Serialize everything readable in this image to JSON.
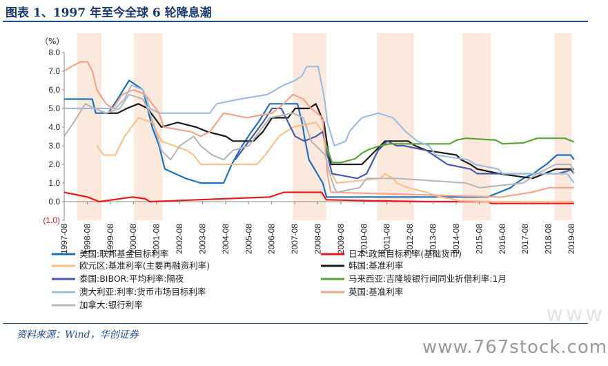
{
  "header": {
    "title": "图表 1、1997 年至今全球 6 轮降息潮"
  },
  "footer": {
    "source": "资料来源：Wind，华创证券",
    "watermark": "www.767stock.com",
    "watermark_ghost": "www"
  },
  "chart_data": {
    "type": "line",
    "title": "",
    "unit_label": "（%）",
    "xlabel": "",
    "ylabel": "",
    "ylim": [
      -1.0,
      8.0
    ],
    "xlim": [
      "1997-08",
      "2019-08"
    ],
    "y_ticks": [
      "8.0",
      "7.0",
      "6.0",
      "5.0",
      "4.0",
      "3.0",
      "2.0",
      "1.0",
      "0.0",
      "(1.0)"
    ],
    "y_tick_values": [
      8,
      7,
      6,
      5,
      4,
      3,
      2,
      1,
      0,
      -1
    ],
    "y_tick_colors": {
      "(1.0)": "#d92020"
    },
    "x_ticks": [
      "1997-08",
      "1998-08",
      "1999-08",
      "2000-08",
      "2001-08",
      "2002-08",
      "2003-08",
      "2004-08",
      "2005-08",
      "2006-08",
      "2007-08",
      "2008-08",
      "2009-08",
      "2010-08",
      "2011-08",
      "2012-08",
      "2013-08",
      "2014-08",
      "2015-08",
      "2016-08",
      "2017-08",
      "2018-08",
      "2019-08"
    ],
    "x_tick_values": [
      1997.583,
      1998.583,
      1999.583,
      2000.583,
      2001.583,
      2002.583,
      2003.583,
      2004.583,
      2005.583,
      2006.583,
      2007.583,
      2008.583,
      2009.583,
      2010.583,
      2011.583,
      2012.583,
      2013.583,
      2014.583,
      2015.583,
      2016.583,
      2017.583,
      2018.583,
      2019.583
    ],
    "shaded_periods": [
      [
        1998.15,
        1999.2
      ],
      [
        2000.6,
        2001.85
      ],
      [
        2007.5,
        2008.95
      ],
      [
        2011.15,
        2012.75
      ],
      [
        2014.85,
        2016.1
      ],
      [
        2018.85,
        2019.6
      ]
    ],
    "grid": false,
    "legend_placement": "bottom",
    "series": [
      {
        "name": "美国:联邦基金目标利率",
        "color": "#1f6fbf",
        "x": [
          1997.58,
          1998.8,
          1998.95,
          1999.5,
          1999.9,
          2000.4,
          2001.0,
          2001.4,
          2001.7,
          2001.95,
          2002.85,
          2003.5,
          2004.5,
          2004.85,
          2005.3,
          2005.7,
          2006.0,
          2006.5,
          2007.7,
          2007.9,
          2008.0,
          2008.2,
          2008.8,
          2008.96,
          2015.95,
          2016.95,
          2017.2,
          2017.5,
          2017.95,
          2018.2,
          2018.5,
          2018.95,
          2019.55,
          2019.7
        ],
        "y": [
          5.5,
          5.5,
          4.75,
          4.75,
          5.5,
          6.5,
          6.0,
          4.0,
          3.0,
          1.75,
          1.25,
          1.0,
          1.0,
          2.0,
          3.0,
          3.75,
          4.25,
          5.25,
          5.25,
          4.25,
          3.5,
          2.25,
          1.0,
          0.25,
          0.25,
          0.75,
          1.0,
          1.25,
          1.5,
          1.75,
          2.0,
          2.5,
          2.5,
          2.25
        ]
      },
      {
        "name": "日本:政策目标利率(基础货币)",
        "color": "#e41a1c",
        "x": [
          1997.58,
          1998.6,
          1999.1,
          2000.55,
          2001.1,
          2001.3,
          2006.5,
          2007.1,
          2008.75,
          2008.95,
          2010.8,
          2013.3,
          2016.0,
          2016.1,
          2019.7
        ],
        "y": [
          0.5,
          0.25,
          0.0,
          0.25,
          0.15,
          0.0,
          0.25,
          0.5,
          0.5,
          0.1,
          0.05,
          0.0,
          0.0,
          -0.1,
          -0.1
        ]
      },
      {
        "name": "欧元区:基准利率(主要再融资利率)",
        "color": "#f8c28e",
        "x": [
          1999.0,
          1999.3,
          1999.8,
          2000.2,
          2000.8,
          2001.4,
          2001.8,
          2002.9,
          2003.2,
          2003.5,
          2005.95,
          2006.3,
          2006.9,
          2007.5,
          2008.5,
          2008.8,
          2009.0,
          2009.2,
          2009.4,
          2011.3,
          2011.5,
          2011.85,
          2012.0,
          2012.5,
          2013.3,
          2013.85,
          2014.4,
          2014.7,
          2016.2,
          2019.7
        ],
        "y": [
          3.0,
          2.5,
          2.5,
          3.5,
          4.5,
          4.25,
          3.25,
          2.75,
          2.5,
          2.0,
          2.0,
          2.5,
          3.5,
          4.0,
          4.25,
          3.75,
          2.5,
          1.5,
          1.0,
          1.25,
          1.5,
          1.25,
          1.0,
          0.75,
          0.5,
          0.25,
          0.15,
          0.05,
          0.0,
          0.0
        ]
      },
      {
        "name": "韩国:基准利率",
        "color": "#1a1a1a",
        "x": [
          1999.4,
          1999.9,
          2000.3,
          2000.8,
          2001.2,
          2001.5,
          2001.8,
          2002.5,
          2003.3,
          2003.8,
          2004.6,
          2004.9,
          2005.8,
          2006.2,
          2006.6,
          2007.3,
          2007.6,
          2008.2,
          2008.5,
          2008.85,
          2009.0,
          2009.15,
          2010.5,
          2010.9,
          2011.3,
          2011.5,
          2012.5,
          2012.8,
          2013.3,
          2014.6,
          2014.8,
          2015.2,
          2015.5,
          2016.45,
          2017.9,
          2018.9,
          2019.55,
          2019.7
        ],
        "y": [
          4.75,
          4.75,
          5.0,
          5.25,
          5.0,
          4.5,
          4.0,
          4.25,
          4.0,
          3.75,
          3.5,
          3.25,
          3.25,
          3.75,
          4.5,
          4.5,
          5.0,
          5.0,
          5.25,
          4.25,
          3.0,
          2.0,
          2.0,
          2.5,
          3.0,
          3.25,
          3.25,
          3.0,
          2.75,
          2.5,
          2.25,
          2.0,
          1.75,
          1.5,
          1.25,
          1.75,
          1.75,
          1.5
        ]
      },
      {
        "name": "泰国:BIBOR:平均利率:隔夜",
        "color": "#4a5aa8",
        "x": [
          2005.0,
          2005.3,
          2005.6,
          2005.9,
          2006.2,
          2006.6,
          2007.0,
          2007.3,
          2007.6,
          2008.0,
          2008.5,
          2008.8,
          2009.0,
          2009.2,
          2010.3,
          2010.7,
          2010.9,
          2011.2,
          2011.6,
          2012.0,
          2012.3,
          2013.3,
          2013.6,
          2014.2,
          2015.2,
          2015.5,
          2019.0,
          2019.7
        ],
        "y": [
          2.25,
          2.75,
          3.25,
          3.75,
          4.25,
          5.0,
          5.0,
          4.25,
          3.5,
          3.25,
          3.5,
          3.75,
          2.5,
          1.5,
          1.25,
          1.5,
          2.0,
          2.75,
          3.25,
          3.0,
          3.0,
          2.75,
          2.5,
          2.0,
          1.75,
          1.5,
          1.5,
          1.75
        ]
      },
      {
        "name": "马来西亚:吉隆坡银行间同业折借利率:1月",
        "color": "#5aa33a",
        "x": [
          2008.85,
          2009.2,
          2009.6,
          2010.2,
          2010.5,
          2010.8,
          2011.3,
          2011.7,
          2014.3,
          2014.6,
          2015.0,
          2016.3,
          2016.6,
          2017.5,
          2018.1,
          2019.3,
          2019.7
        ],
        "y": [
          3.4,
          2.1,
          2.1,
          2.3,
          2.6,
          2.8,
          3.0,
          3.1,
          3.1,
          3.3,
          3.4,
          3.3,
          3.1,
          3.15,
          3.4,
          3.4,
          3.2
        ]
      },
      {
        "name": "澳大利亚:利率:货币市场目标利率",
        "color": "#9fbde0",
        "x": [
          1997.58,
          1997.9,
          1998.8,
          1999.8,
          2000.2,
          2000.5,
          2001.0,
          2001.3,
          2001.7,
          2002.4,
          2002.9,
          2003.9,
          2004.2,
          2005.2,
          2006.4,
          2007.1,
          2007.6,
          2007.9,
          2008.1,
          2008.6,
          2008.8,
          2008.9,
          2009.0,
          2009.3,
          2009.8,
          2009.95,
          2010.3,
          2010.5,
          2011.2,
          2011.85,
          2012.4,
          2012.9,
          2013.4,
          2013.7,
          2015.1,
          2015.4,
          2016.4,
          2016.6,
          2019.4,
          2019.7
        ],
        "y": [
          5.0,
          5.0,
          5.0,
          5.0,
          5.5,
          6.25,
          6.0,
          5.0,
          4.75,
          4.75,
          4.75,
          4.75,
          5.25,
          5.5,
          5.75,
          6.25,
          6.5,
          6.75,
          7.25,
          7.25,
          6.0,
          5.25,
          4.25,
          3.0,
          3.25,
          3.75,
          4.25,
          4.5,
          4.75,
          4.5,
          3.75,
          3.25,
          3.0,
          2.5,
          2.25,
          2.0,
          1.75,
          1.5,
          1.5,
          1.0
        ]
      },
      {
        "name": "英国:基准利率",
        "color": "#f2a48a",
        "x": [
          1997.58,
          1997.9,
          1998.3,
          1998.6,
          1998.8,
          1999.0,
          1999.4,
          1999.7,
          2000.1,
          2000.6,
          2001.1,
          2001.4,
          2001.7,
          2001.9,
          2003.1,
          2003.5,
          2003.9,
          2004.5,
          2005.5,
          2006.6,
          2007.1,
          2007.5,
          2007.95,
          2008.3,
          2008.8,
          2008.9,
          2009.0,
          2009.15,
          2016.55,
          2017.85,
          2018.6,
          2019.7
        ],
        "y": [
          7.0,
          7.25,
          7.5,
          7.5,
          7.0,
          6.0,
          5.25,
          5.0,
          5.75,
          6.0,
          5.75,
          5.25,
          4.75,
          4.0,
          3.75,
          3.5,
          3.75,
          4.75,
          4.5,
          4.75,
          5.25,
          5.75,
          5.5,
          5.0,
          4.5,
          3.0,
          1.5,
          0.5,
          0.25,
          0.5,
          0.75,
          0.75
        ]
      },
      {
        "name": "加拿大:银行利率",
        "color": "#b8b8b8",
        "x": [
          1997.58,
          1998.0,
          1998.5,
          1998.9,
          1999.4,
          2000.0,
          2000.4,
          2001.0,
          2001.3,
          2001.5,
          2001.8,
          2002.2,
          2002.6,
          2003.2,
          2003.5,
          2004.0,
          2004.5,
          2004.9,
          2005.6,
          2006.5,
          2007.5,
          2007.95,
          2008.3,
          2008.9,
          2009.1,
          2009.3,
          2009.4,
          2010.4,
          2010.7,
          2012.0,
          2015.0,
          2015.6,
          2017.5,
          2017.8,
          2018.1,
          2018.5,
          2018.9,
          2019.55,
          2019.7
        ],
        "y": [
          3.5,
          4.25,
          5.25,
          5.0,
          4.75,
          5.0,
          5.75,
          5.5,
          4.75,
          4.0,
          2.75,
          2.25,
          3.0,
          3.5,
          3.0,
          2.5,
          2.25,
          2.75,
          3.0,
          4.5,
          4.75,
          4.5,
          3.25,
          2.5,
          1.5,
          0.75,
          0.5,
          0.75,
          1.25,
          1.25,
          1.0,
          0.75,
          1.0,
          1.25,
          1.5,
          1.75,
          2.0,
          2.0,
          1.5
        ]
      }
    ]
  }
}
